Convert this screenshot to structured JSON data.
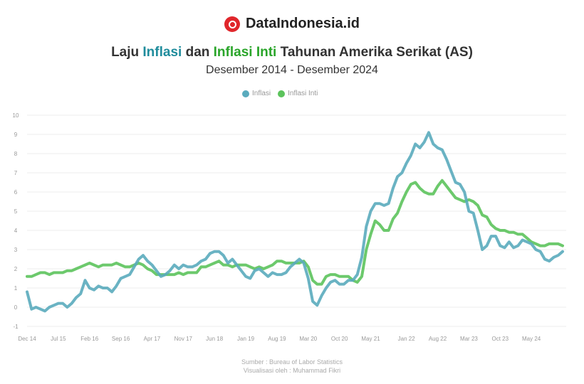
{
  "brand": {
    "name": "DataIndonesia.id"
  },
  "title": {
    "part1": "Laju ",
    "inflasi": "Inflasi",
    "part2": " dan ",
    "inflasi_inti": "Inflasi Inti",
    "part3": " Tahunan Amerika Serikat (AS)"
  },
  "subtitle": "Desember 2014 - Desember 2024",
  "source": {
    "line1": "Sumber : Bureau of Labor Statistics",
    "line2": "Visualisasi oleh : Muhammad Fikri"
  },
  "colors": {
    "inflasi": "#5aabbd",
    "inflasi_inti": "#5cc35c",
    "title_inflasi": "#1f8c9c",
    "title_inti": "#2aa52a"
  },
  "chart_data": {
    "type": "line",
    "title": "Laju Inflasi dan Inflasi Inti Tahunan Amerika Serikat (AS)",
    "xlabel": "",
    "ylabel": "",
    "ylim": [
      -1,
      10
    ],
    "yticks": [
      -1,
      0,
      1,
      2,
      3,
      4,
      5,
      6,
      7,
      8,
      9,
      10
    ],
    "grid": true,
    "legend": "top-center",
    "xticks": [
      {
        "x": "2014-12",
        "label": "Dec 14"
      },
      {
        "x": "2015-07",
        "label": "Jul 15"
      },
      {
        "x": "2016-02",
        "label": "Feb 16"
      },
      {
        "x": "2016-09",
        "label": "Sep 16"
      },
      {
        "x": "2017-04",
        "label": "Apr 17"
      },
      {
        "x": "2017-11",
        "label": "Nov 17"
      },
      {
        "x": "2018-06",
        "label": "Jun 18"
      },
      {
        "x": "2019-01",
        "label": "Jan 19"
      },
      {
        "x": "2019-08",
        "label": "Aug 19"
      },
      {
        "x": "2020-03",
        "label": "Mar 20"
      },
      {
        "x": "2020-10",
        "label": "Oct 20"
      },
      {
        "x": "2021-05",
        "label": "May 21"
      },
      {
        "x": "2022-01",
        "label": "Jan 22"
      },
      {
        "x": "2022-08",
        "label": "Aug 22"
      },
      {
        "x": "2023-03",
        "label": "Mar 23"
      },
      {
        "x": "2023-10",
        "label": "Oct 23"
      },
      {
        "x": "2024-05",
        "label": "May 24"
      }
    ],
    "x_range": [
      "2014-12",
      "2024-12"
    ],
    "series": [
      {
        "name": "Inflasi",
        "color": "#5aabbd",
        "values": [
          0.8,
          -0.1,
          0.0,
          -0.1,
          -0.2,
          0.0,
          0.1,
          0.2,
          0.2,
          0.0,
          0.2,
          0.5,
          0.7,
          1.4,
          1.0,
          0.9,
          1.1,
          1.0,
          1.0,
          0.8,
          1.1,
          1.5,
          1.6,
          1.7,
          2.1,
          2.5,
          2.7,
          2.4,
          2.2,
          1.9,
          1.6,
          1.7,
          1.9,
          2.2,
          2.0,
          2.2,
          2.1,
          2.1,
          2.2,
          2.4,
          2.5,
          2.8,
          2.9,
          2.9,
          2.7,
          2.3,
          2.5,
          2.2,
          1.9,
          1.6,
          1.5,
          1.9,
          2.0,
          1.8,
          1.6,
          1.8,
          1.7,
          1.7,
          1.8,
          2.1,
          2.3,
          2.5,
          2.3,
          1.5,
          0.3,
          0.1,
          0.6,
          1.0,
          1.3,
          1.4,
          1.2,
          1.2,
          1.4,
          1.4,
          1.7,
          2.6,
          4.2,
          5.0,
          5.4,
          5.4,
          5.3,
          5.4,
          6.2,
          6.8,
          7.0,
          7.5,
          7.9,
          8.5,
          8.3,
          8.6,
          9.1,
          8.5,
          8.3,
          8.2,
          7.7,
          7.1,
          6.5,
          6.4,
          6.0,
          5.0,
          4.9,
          4.0,
          3.0,
          3.2,
          3.7,
          3.7,
          3.2,
          3.1,
          3.4,
          3.1,
          3.2,
          3.5,
          3.4,
          3.3,
          3.0,
          2.9,
          2.5,
          2.4,
          2.6,
          2.7,
          2.9
        ]
      },
      {
        "name": "Inflasi Inti",
        "color": "#5cc35c",
        "values": [
          1.6,
          1.6,
          1.7,
          1.8,
          1.8,
          1.7,
          1.8,
          1.8,
          1.8,
          1.9,
          1.9,
          2.0,
          2.1,
          2.2,
          2.3,
          2.2,
          2.1,
          2.2,
          2.2,
          2.2,
          2.3,
          2.2,
          2.1,
          2.1,
          2.2,
          2.3,
          2.2,
          2.0,
          1.9,
          1.7,
          1.7,
          1.7,
          1.7,
          1.7,
          1.8,
          1.7,
          1.8,
          1.8,
          1.8,
          2.1,
          2.1,
          2.2,
          2.3,
          2.4,
          2.2,
          2.2,
          2.1,
          2.2,
          2.2,
          2.2,
          2.1,
          2.0,
          2.1,
          2.0,
          2.1,
          2.2,
          2.4,
          2.4,
          2.3,
          2.3,
          2.3,
          2.3,
          2.4,
          2.1,
          1.4,
          1.2,
          1.2,
          1.6,
          1.7,
          1.7,
          1.6,
          1.6,
          1.6,
          1.4,
          1.3,
          1.6,
          3.0,
          3.8,
          4.5,
          4.3,
          4.0,
          4.0,
          4.6,
          4.9,
          5.5,
          6.0,
          6.4,
          6.5,
          6.2,
          6.0,
          5.9,
          5.9,
          6.3,
          6.6,
          6.3,
          6.0,
          5.7,
          5.6,
          5.5,
          5.6,
          5.5,
          5.3,
          4.8,
          4.7,
          4.3,
          4.1,
          4.0,
          4.0,
          3.9,
          3.9,
          3.8,
          3.8,
          3.6,
          3.4,
          3.3,
          3.2,
          3.2,
          3.3,
          3.3,
          3.3,
          3.2
        ]
      }
    ]
  }
}
